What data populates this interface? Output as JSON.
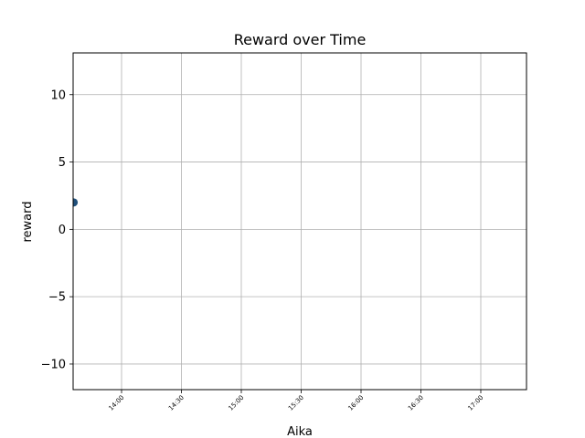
{
  "chart_data": {
    "type": "scatter",
    "title": "Reward over Time",
    "xlabel": "Aika",
    "ylabel": "reward",
    "x_tick_labels": [
      "14:00",
      "14:30",
      "15:00",
      "15:30",
      "16:00",
      "16:30",
      "17:00"
    ],
    "y_ticks": [
      -10,
      -5,
      0,
      5,
      10
    ],
    "y_tick_labels": [
      "−10",
      "−5",
      "0",
      "5",
      "10"
    ],
    "ylim": [
      -11.9,
      13.1
    ],
    "grid": true,
    "marker_color": "#1f4e79",
    "series": [
      {
        "points": [
          {
            "x_tick_offset": -0.8,
            "y": 2
          }
        ]
      }
    ]
  }
}
